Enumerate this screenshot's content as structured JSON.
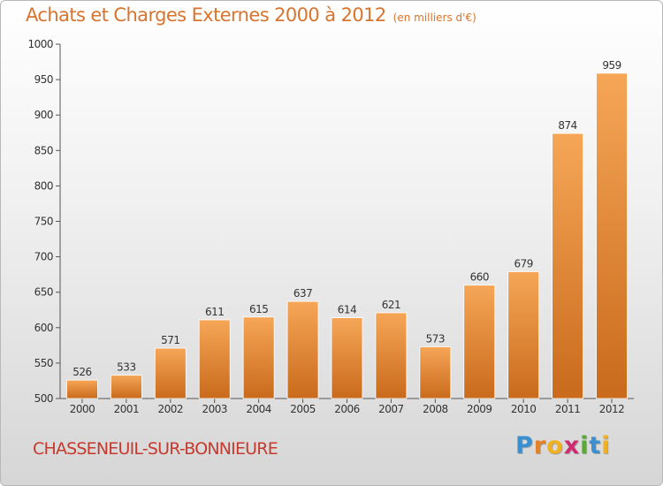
{
  "title": "Achats et Charges Externes 2000 à 2012",
  "unit": "(en milliers d'€)",
  "commune": "CHASSENEUIL-SUR-BONNIEURE",
  "logo": {
    "text": "Proxiti",
    "letter_colors": [
      "#3a8fd0",
      "#e0822a",
      "#f0b020",
      "#d02a70",
      "#5aa83a",
      "#3a8fd0",
      "#f0b020"
    ]
  },
  "colors": {
    "title": "#d9742e",
    "commune": "#c63a2e",
    "bar_light": "#f6a657",
    "bar_dark": "#c96a1c"
  },
  "chart_data": {
    "type": "bar",
    "categories": [
      "2000",
      "2001",
      "2002",
      "2003",
      "2004",
      "2005",
      "2006",
      "2007",
      "2008",
      "2009",
      "2010",
      "2011",
      "2012"
    ],
    "values": [
      526,
      533,
      571,
      611,
      615,
      637,
      614,
      621,
      573,
      660,
      679,
      874,
      959
    ],
    "ylim": [
      500,
      1000
    ],
    "yticks": [
      500,
      550,
      600,
      650,
      700,
      750,
      800,
      850,
      900,
      950,
      1000
    ],
    "grid": false,
    "data_labels": true
  }
}
